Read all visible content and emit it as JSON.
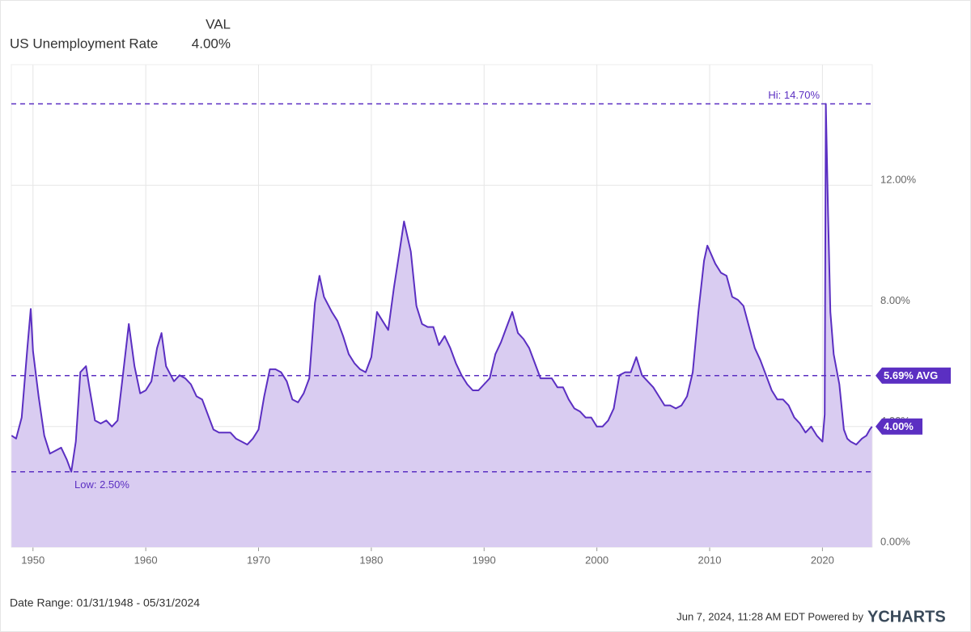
{
  "chart_data": {
    "type": "line",
    "legend_header": "VAL",
    "series": [
      {
        "name": "US Unemployment Rate",
        "value_label": "4.00%",
        "color": "#5b2fc2",
        "fill": "#d9ccf1",
        "x": [
          1948.1,
          1948.5,
          1949.0,
          1949.5,
          1949.8,
          1950.0,
          1950.5,
          1951.0,
          1951.5,
          1952.0,
          1952.5,
          1953.0,
          1953.4,
          1953.8,
          1954.2,
          1954.7,
          1955.0,
          1955.5,
          1956.0,
          1956.5,
          1957.0,
          1957.5,
          1958.0,
          1958.5,
          1959.0,
          1959.5,
          1960.0,
          1960.5,
          1961.0,
          1961.4,
          1961.8,
          1962.5,
          1963.0,
          1963.5,
          1964.0,
          1964.5,
          1965.0,
          1965.5,
          1966.0,
          1966.5,
          1967.0,
          1967.5,
          1968.0,
          1968.5,
          1969.0,
          1969.5,
          1970.0,
          1970.5,
          1971.0,
          1971.5,
          1972.0,
          1972.5,
          1973.0,
          1973.5,
          1974.0,
          1974.5,
          1975.0,
          1975.4,
          1975.8,
          1976.5,
          1977.0,
          1977.5,
          1978.0,
          1978.5,
          1979.0,
          1979.5,
          1980.0,
          1980.5,
          1981.0,
          1981.5,
          1982.0,
          1982.5,
          1982.9,
          1983.5,
          1984.0,
          1984.5,
          1985.0,
          1985.5,
          1986.0,
          1986.5,
          1987.0,
          1987.5,
          1988.0,
          1988.5,
          1989.0,
          1989.5,
          1990.0,
          1990.5,
          1991.0,
          1991.5,
          1992.0,
          1992.5,
          1993.0,
          1993.5,
          1994.0,
          1994.5,
          1995.0,
          1995.5,
          1996.0,
          1996.5,
          1997.0,
          1997.5,
          1998.0,
          1998.5,
          1999.0,
          1999.5,
          2000.0,
          2000.5,
          2001.0,
          2001.5,
          2002.0,
          2002.5,
          2003.0,
          2003.5,
          2004.0,
          2004.5,
          2005.0,
          2005.5,
          2006.0,
          2006.5,
          2007.0,
          2007.5,
          2008.0,
          2008.5,
          2009.0,
          2009.5,
          2009.8,
          2010.5,
          2011.0,
          2011.5,
          2012.0,
          2012.5,
          2013.0,
          2013.5,
          2014.0,
          2014.5,
          2015.0,
          2015.5,
          2016.0,
          2016.5,
          2017.0,
          2017.5,
          2018.0,
          2018.5,
          2019.0,
          2019.5,
          2020.0,
          2020.2,
          2020.3,
          2020.5,
          2020.7,
          2021.0,
          2021.5,
          2021.9,
          2022.2,
          2022.5,
          2023.0,
          2023.5,
          2023.9,
          2024.2,
          2024.4
        ],
        "values": [
          3.7,
          3.6,
          4.3,
          6.6,
          7.9,
          6.5,
          5.0,
          3.7,
          3.1,
          3.2,
          3.3,
          2.9,
          2.5,
          3.5,
          5.8,
          6.0,
          5.3,
          4.2,
          4.1,
          4.2,
          4.0,
          4.2,
          5.8,
          7.4,
          6.0,
          5.1,
          5.2,
          5.5,
          6.6,
          7.1,
          6.0,
          5.5,
          5.7,
          5.6,
          5.4,
          5.0,
          4.9,
          4.4,
          3.9,
          3.8,
          3.8,
          3.8,
          3.6,
          3.5,
          3.4,
          3.6,
          3.9,
          5.0,
          5.9,
          5.9,
          5.8,
          5.5,
          4.9,
          4.8,
          5.1,
          5.6,
          8.1,
          9.0,
          8.3,
          7.8,
          7.5,
          7.0,
          6.4,
          6.1,
          5.9,
          5.8,
          6.3,
          7.8,
          7.5,
          7.2,
          8.6,
          9.8,
          10.8,
          9.8,
          8.0,
          7.4,
          7.3,
          7.3,
          6.7,
          7.0,
          6.6,
          6.1,
          5.7,
          5.4,
          5.2,
          5.2,
          5.4,
          5.6,
          6.4,
          6.8,
          7.3,
          7.8,
          7.1,
          6.9,
          6.6,
          6.1,
          5.6,
          5.6,
          5.6,
          5.3,
          5.3,
          4.9,
          4.6,
          4.5,
          4.3,
          4.3,
          4.0,
          4.0,
          4.2,
          4.6,
          5.7,
          5.8,
          5.8,
          6.3,
          5.7,
          5.5,
          5.3,
          5.0,
          4.7,
          4.7,
          4.6,
          4.7,
          5.0,
          5.8,
          7.8,
          9.5,
          10.0,
          9.4,
          9.1,
          9.0,
          8.3,
          8.2,
          8.0,
          7.3,
          6.6,
          6.2,
          5.7,
          5.2,
          4.9,
          4.9,
          4.7,
          4.3,
          4.1,
          3.8,
          4.0,
          3.7,
          3.5,
          4.4,
          14.7,
          11.0,
          7.8,
          6.4,
          5.4,
          3.9,
          3.6,
          3.5,
          3.4,
          3.6,
          3.7,
          3.9,
          4.0
        ],
        "last_value": 4,
        "last_value_label": "4.00%"
      }
    ],
    "hi": {
      "value": 14.7,
      "label": "Hi: 14.70%"
    },
    "low": {
      "value": 2.5,
      "label": "Low: 2.50%"
    },
    "avg": {
      "value": 5.69,
      "label": "5.69% AVG"
    },
    "xlim": [
      1948.08,
      2024.42
    ],
    "xticks": [
      1950,
      1960,
      1970,
      1980,
      1990,
      2000,
      2010,
      2020
    ],
    "ylim": [
      0,
      16
    ],
    "yticks": [
      {
        "value": 0,
        "label": "0.00%"
      },
      {
        "value": 4,
        "label": "4.00%"
      },
      {
        "value": 8,
        "label": "8.00%"
      },
      {
        "value": 12,
        "label": "12.00%"
      }
    ],
    "grid": true,
    "date_range": "Date Range: 01/31/1948 - 05/31/2024",
    "timestamp": "Jun 7, 2024, 11:28 AM EDT Powered by",
    "brand": "YCHARTS"
  }
}
